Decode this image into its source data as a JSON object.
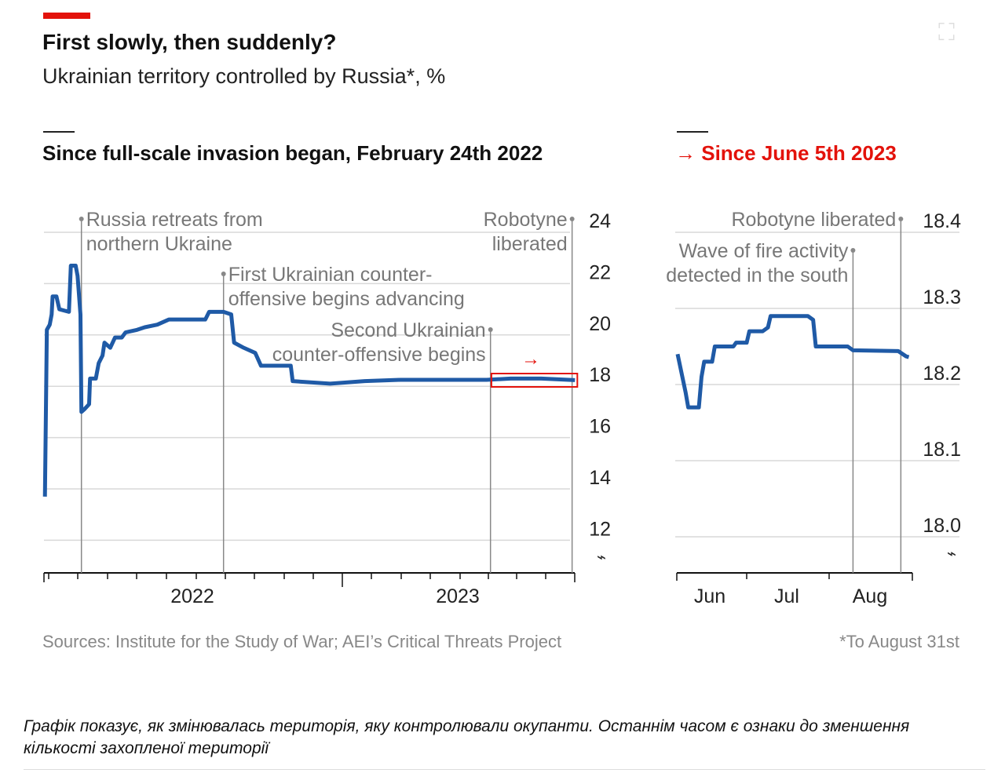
{
  "title": "First slowly, then suddenly?",
  "subtitle": "Ukrainian territory controlled by Russia*, %",
  "caption": "Графік показує, як змінювалась територія, яку контролювали окупанти. Останнім часом є ознаки до зменшення кількості захопленої території",
  "colors": {
    "line": "#1f5aa6",
    "accent": "#e3120b",
    "grid": "#d9d9d9",
    "annotation": "#777777"
  },
  "icons": {
    "expand": "expand-icon",
    "arrow": "arrow-right-icon",
    "axis_break": "axis-break-icon"
  },
  "chart_data": [
    {
      "type": "line",
      "title": "Since full-scale invasion began, February 24th 2022",
      "xlabel": "",
      "ylabel": "",
      "ylim": [
        12,
        24
      ],
      "yticks": [
        "24",
        "22",
        "20",
        "18",
        "16",
        "14",
        "12"
      ],
      "y_axis_break": true,
      "grid": true,
      "xlim": [
        "2022-02-24",
        "2023-08-31"
      ],
      "xtick_labels": [
        "2022",
        "2023"
      ],
      "source": "Sources: Institute for the Study of War; AEI’s Critical Threats Project",
      "annotations": [
        {
          "date": "2022-04-04",
          "text": [
            "Russia retreats from",
            "northern Ukraine"
          ]
        },
        {
          "date": "2022-08-30",
          "text": [
            "First Ukrainian counter-",
            "offensive begins advancing"
          ]
        },
        {
          "date": "2023-06-04",
          "text": [
            "Second Ukrainian",
            "counter-offensive begins"
          ]
        },
        {
          "date": "2023-08-28",
          "text": [
            "Robotyne",
            "liberated"
          ]
        }
      ],
      "highlight": {
        "from": "2023-06-05",
        "to": "2023-08-31",
        "arrow": "→"
      },
      "series": [
        {
          "x": [
            "2022-02-25",
            "2022-02-27",
            "2022-03-02",
            "2022-03-04",
            "2022-03-05",
            "2022-03-09",
            "2022-03-12",
            "2022-03-22",
            "2022-03-24",
            "2022-03-29",
            "2022-03-31",
            "2022-04-03",
            "2022-04-04",
            "2022-04-07",
            "2022-04-12",
            "2022-04-13",
            "2022-04-19",
            "2022-04-22",
            "2022-04-26",
            "2022-04-28",
            "2022-05-04",
            "2022-05-09",
            "2022-05-16",
            "2022-05-20",
            "2022-06-01",
            "2022-06-09",
            "2022-06-22",
            "2022-07-04",
            "2022-08-11",
            "2022-08-15",
            "2022-08-30",
            "2022-09-07",
            "2022-09-10",
            "2022-09-20",
            "2022-10-02",
            "2022-10-08",
            "2022-11-08",
            "2022-11-10",
            "2022-12-19",
            "2023-01-24",
            "2023-03-02",
            "2023-05-31",
            "2023-06-25",
            "2023-07-27",
            "2023-08-31"
          ],
          "values": [
            13.7,
            20.2,
            20.4,
            20.8,
            21.5,
            21.5,
            21.0,
            20.9,
            22.7,
            22.7,
            22.3,
            20.8,
            17.0,
            17.1,
            17.3,
            18.3,
            18.3,
            18.9,
            19.2,
            19.7,
            19.5,
            19.9,
            19.9,
            20.1,
            20.2,
            20.3,
            20.4,
            20.6,
            20.6,
            20.9,
            20.9,
            20.8,
            19.7,
            19.5,
            19.3,
            18.8,
            18.8,
            18.2,
            18.1,
            18.2,
            18.25,
            18.25,
            18.3,
            18.3,
            18.24
          ]
        }
      ]
    },
    {
      "type": "line",
      "title": "→ Since June 5th 2023",
      "xlabel": "",
      "ylabel": "",
      "ylim": [
        18.0,
        18.4
      ],
      "yticks": [
        "18.4",
        "18.3",
        "18.2",
        "18.1",
        "18.0"
      ],
      "y_axis_break": true,
      "grid": true,
      "xlim": [
        "2023-06-05",
        "2023-09-01"
      ],
      "xtick_labels": [
        "Jun",
        "Jul",
        "Aug"
      ],
      "footnote": "*To August 31st",
      "annotations": [
        {
          "date": "2023-08-10",
          "text": [
            "Wave of fire activity",
            "detected in the south"
          ]
        },
        {
          "date": "2023-08-28",
          "text": [
            "Robotyne liberated"
          ]
        }
      ],
      "series": [
        {
          "x": [
            "2023-06-05",
            "2023-06-08",
            "2023-06-09",
            "2023-06-13",
            "2023-06-14",
            "2023-06-15",
            "2023-06-18",
            "2023-06-19",
            "2023-06-26",
            "2023-06-27",
            "2023-07-01",
            "2023-07-02",
            "2023-07-07",
            "2023-07-09",
            "2023-07-10",
            "2023-07-24",
            "2023-07-26",
            "2023-07-27",
            "2023-08-08",
            "2023-08-10",
            "2023-08-27",
            "2023-08-30",
            "2023-08-31"
          ],
          "values": [
            18.24,
            18.19,
            18.17,
            18.17,
            18.21,
            18.23,
            18.23,
            18.25,
            18.25,
            18.255,
            18.255,
            18.27,
            18.27,
            18.275,
            18.29,
            18.29,
            18.285,
            18.25,
            18.25,
            18.245,
            18.244,
            18.237,
            18.236
          ]
        }
      ]
    }
  ]
}
